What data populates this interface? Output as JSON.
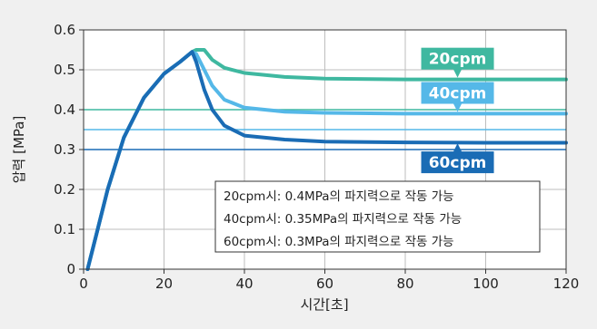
{
  "chart_data": {
    "type": "line",
    "xlabel": "시간[초]",
    "ylabel": "압력 [MPa]",
    "xlim": [
      0,
      120
    ],
    "ylim": [
      0,
      0.6
    ],
    "xticks": [
      0,
      20,
      40,
      60,
      80,
      100,
      120
    ],
    "yticks": [
      0,
      0.1,
      0.2,
      0.3,
      0.4,
      0.5,
      0.6
    ],
    "grid": true,
    "series": [
      {
        "name": "20cpm",
        "color": "#3fb8a0",
        "points": [
          [
            1,
            0
          ],
          [
            3,
            0.08
          ],
          [
            6,
            0.2
          ],
          [
            10,
            0.33
          ],
          [
            15,
            0.43
          ],
          [
            20,
            0.49
          ],
          [
            24,
            0.52
          ],
          [
            27,
            0.545
          ],
          [
            28,
            0.55
          ],
          [
            30,
            0.55
          ],
          [
            32,
            0.525
          ],
          [
            35,
            0.505
          ],
          [
            40,
            0.492
          ],
          [
            50,
            0.482
          ],
          [
            60,
            0.478
          ],
          [
            80,
            0.476
          ],
          [
            100,
            0.476
          ],
          [
            120,
            0.476
          ]
        ]
      },
      {
        "name": "40cpm",
        "color": "#55b8e8",
        "points": [
          [
            1,
            0
          ],
          [
            3,
            0.08
          ],
          [
            6,
            0.2
          ],
          [
            10,
            0.33
          ],
          [
            15,
            0.43
          ],
          [
            20,
            0.49
          ],
          [
            24,
            0.52
          ],
          [
            27,
            0.545
          ],
          [
            28,
            0.54
          ],
          [
            30,
            0.5
          ],
          [
            32,
            0.46
          ],
          [
            35,
            0.425
          ],
          [
            40,
            0.405
          ],
          [
            50,
            0.395
          ],
          [
            60,
            0.392
          ],
          [
            80,
            0.39
          ],
          [
            100,
            0.39
          ],
          [
            120,
            0.39
          ]
        ]
      },
      {
        "name": "60cpm",
        "color": "#1a6cb5",
        "points": [
          [
            1,
            0
          ],
          [
            3,
            0.08
          ],
          [
            6,
            0.2
          ],
          [
            10,
            0.33
          ],
          [
            15,
            0.43
          ],
          [
            20,
            0.49
          ],
          [
            24,
            0.52
          ],
          [
            27,
            0.545
          ],
          [
            28,
            0.52
          ],
          [
            30,
            0.45
          ],
          [
            32,
            0.4
          ],
          [
            35,
            0.36
          ],
          [
            40,
            0.335
          ],
          [
            50,
            0.325
          ],
          [
            60,
            0.32
          ],
          [
            80,
            0.318
          ],
          [
            100,
            0.317
          ],
          [
            120,
            0.317
          ]
        ]
      }
    ],
    "reference_lines": [
      {
        "y": 0.4,
        "color": "#3fb8a0"
      },
      {
        "y": 0.35,
        "color": "#55b8e8"
      },
      {
        "y": 0.3,
        "color": "#1a6cb5"
      }
    ],
    "series_labels": [
      {
        "text": "20cpm",
        "color": "#3fb8a0",
        "arrow_x": 93,
        "arrow_y": 0.478
      },
      {
        "text": "40cpm",
        "color": "#55b8e8",
        "arrow_x": 93,
        "arrow_y": 0.392
      },
      {
        "text": "60cpm",
        "color": "#1a6cb5",
        "arrow_x": 93,
        "arrow_y": 0.318
      }
    ],
    "annotation_lines": [
      "20cpm시: 0.4MPa의 파지력으로 작동 가능",
      "40cpm시: 0.35MPa의 파지력으로 작동 가능",
      "60cpm시: 0.3MPa의 파지력으로 작동 가능"
    ]
  }
}
